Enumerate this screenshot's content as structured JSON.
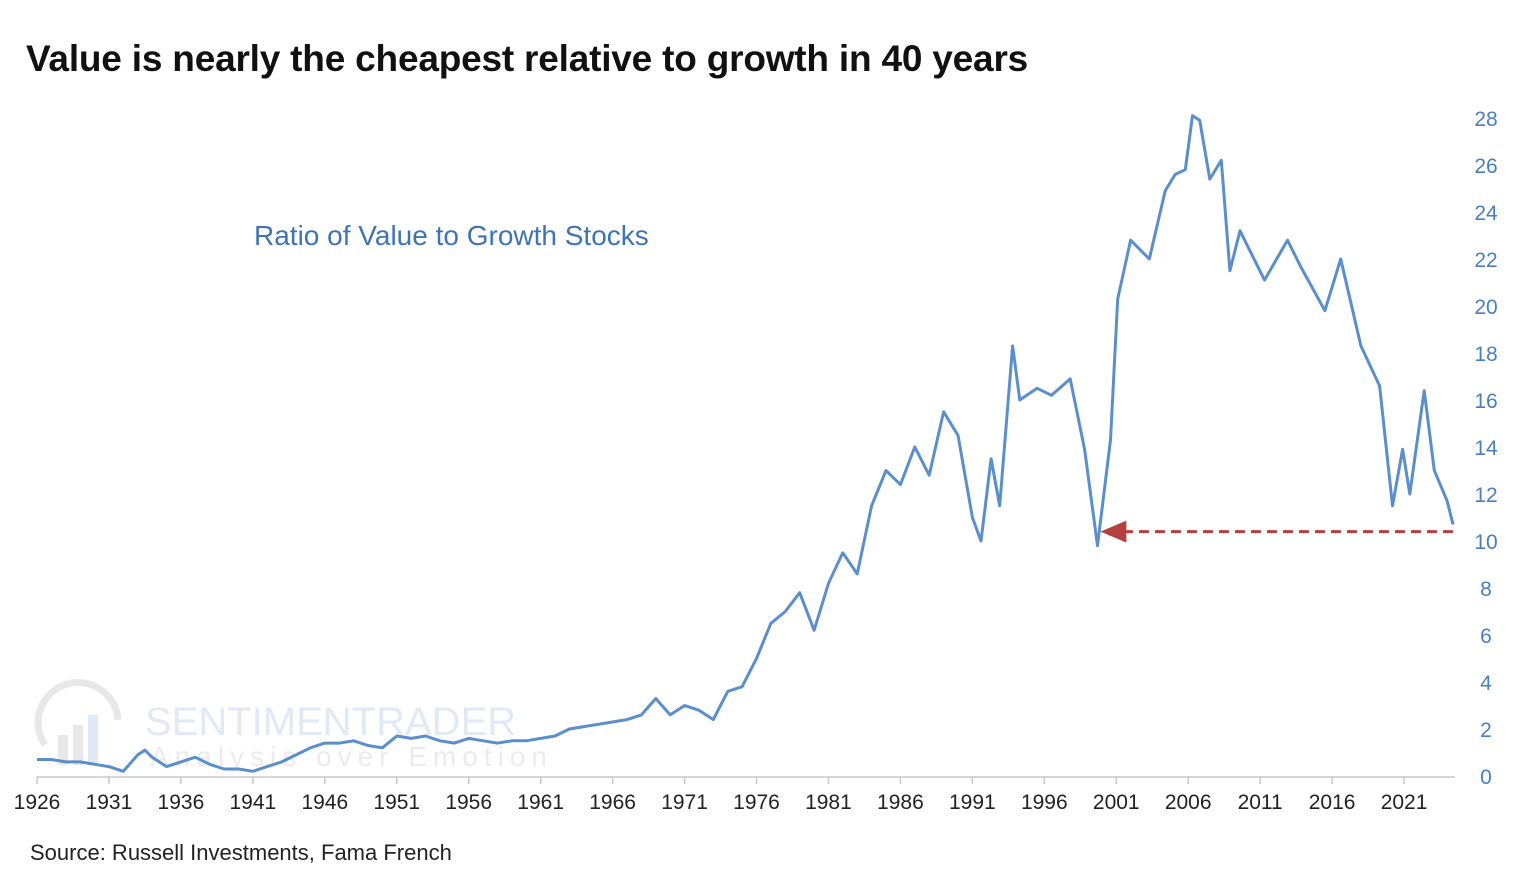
{
  "chart_data": {
    "type": "line",
    "title": "Value is nearly the cheapest relative to growth in 40 years",
    "annotation": "Ratio of Value to Growth Stocks",
    "source": "Source: Russell Investments, Fama French",
    "watermark": {
      "brand": "SENTIMENTRADER",
      "tagline": "Analysis over Emotion"
    },
    "xlim": [
      1926,
      2024.6
    ],
    "ylim": [
      0,
      28
    ],
    "x_ticks": [
      "1926",
      "1931",
      "1936",
      "1941",
      "1946",
      "1951",
      "1956",
      "1961",
      "1966",
      "1971",
      "1976",
      "1981",
      "1986",
      "1991",
      "1996",
      "2001",
      "2006",
      "2011",
      "2016",
      "2021"
    ],
    "y_ticks": [
      "0",
      "2",
      "4",
      "6",
      "8",
      "10",
      "12",
      "14",
      "16",
      "18",
      "20",
      "22",
      "24",
      "26",
      "28"
    ],
    "y_axis_side": "right",
    "grid": false,
    "legend": "none",
    "colors": {
      "line": "#5b8fcb",
      "axis_labels": "#4a7fbd",
      "arrow": "#b5413f",
      "annotation": "#3f74b3"
    },
    "reference_arrow": {
      "value": 10.4,
      "from_x": 2024.4,
      "to_x": 1999.9
    },
    "series": [
      {
        "x": [
          1926,
          1927,
          1928,
          1929,
          1930,
          1931,
          1932,
          1933,
          1933.5,
          1934,
          1935,
          1936,
          1937,
          1938,
          1939,
          1940,
          1941,
          1942,
          1943,
          1944,
          1945,
          1946,
          1947,
          1948,
          1949,
          1950,
          1951,
          1952,
          1953,
          1954,
          1955,
          1956,
          1957,
          1958,
          1959,
          1960,
          1961,
          1962,
          1963,
          1964,
          1965,
          1966,
          1967,
          1968,
          1969,
          1970,
          1971,
          1972,
          1973,
          1974,
          1975,
          1976,
          1977,
          1978,
          1979,
          1980,
          1981,
          1982,
          1983,
          1984,
          1985,
          1986,
          1987,
          1988,
          1989,
          1990,
          1991,
          1991.6,
          1992.3,
          1992.9,
          1993.8,
          1994.3,
          1995.5,
          1996.5,
          1997.8,
          1998.8,
          1999.7,
          2000.6,
          2001.1,
          2002,
          2003.3,
          2004.4,
          2005.1,
          2005.8,
          2006.3,
          2006.8,
          2007.5,
          2008.3,
          2008.9,
          2009.6,
          2011.3,
          2012.9,
          2013.8,
          2015.5,
          2016.6,
          2018,
          2019.3,
          2020.2,
          2020.9,
          2021.4,
          2022.4,
          2023.1,
          2024,
          2024.4
        ],
        "y": [
          0.7,
          0.7,
          0.6,
          0.6,
          0.5,
          0.4,
          0.2,
          0.9,
          1.1,
          0.8,
          0.4,
          0.6,
          0.8,
          0.5,
          0.3,
          0.3,
          0.2,
          0.4,
          0.6,
          0.9,
          1.2,
          1.4,
          1.4,
          1.5,
          1.3,
          1.2,
          1.7,
          1.6,
          1.7,
          1.5,
          1.4,
          1.6,
          1.5,
          1.4,
          1.5,
          1.5,
          1.6,
          1.7,
          2.0,
          2.1,
          2.2,
          2.3,
          2.4,
          2.6,
          3.3,
          2.6,
          3.0,
          2.8,
          2.4,
          3.6,
          3.8,
          5.0,
          6.5,
          7.0,
          7.8,
          6.2,
          8.2,
          9.5,
          8.6,
          11.5,
          13.0,
          12.4,
          14.0,
          12.8,
          15.5,
          14.5,
          11.0,
          10.0,
          13.5,
          11.5,
          18.3,
          16.0,
          16.5,
          16.2,
          16.9,
          13.9,
          9.8,
          14.3,
          20.3,
          22.8,
          22.0,
          24.9,
          25.6,
          25.8,
          28.1,
          27.9,
          25.4,
          26.2,
          21.5,
          23.2,
          21.1,
          22.8,
          21.7,
          19.8,
          22.0,
          18.3,
          16.6,
          11.5,
          13.9,
          12.0,
          16.4,
          13.0,
          11.7,
          10.7
        ]
      }
    ]
  }
}
